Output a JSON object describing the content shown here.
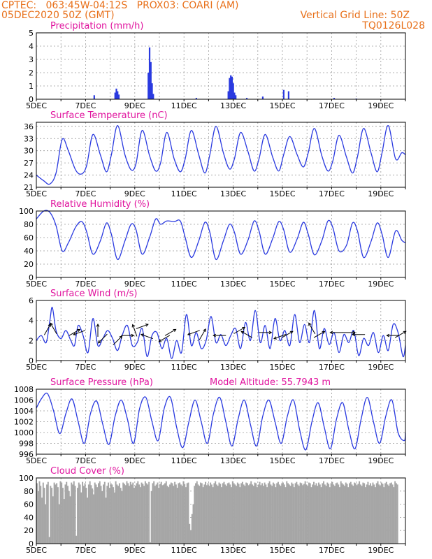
{
  "header": {
    "line1_left": "CPTEC:   063:45W-04:12S   PROX03: COARI (AM)",
    "line2_left": "05DEC2020 50Z (GMT)",
    "line2_right": "Vertical Grid Line: 50Z",
    "line3_right": "TQ0126L028"
  },
  "colors": {
    "header": "#e8701a",
    "title": "#e0149e",
    "series": "#2a3ae0",
    "cloud": "#a6a6a6"
  },
  "x_tick_labels": [
    "5DEC",
    "7DEC",
    "9DEC",
    "11DEC",
    "13DEC",
    "15DEC",
    "17DEC",
    "19DEC"
  ],
  "chart_data": [
    {
      "type": "bar",
      "title": "Precipitation  (mm/h)",
      "x_unit": "days since 5DEC 00Z",
      "ylim": [
        0,
        5
      ],
      "yticks": [
        0,
        1,
        2,
        3,
        4,
        5
      ],
      "grid": true,
      "bars": [
        {
          "x": 2.35,
          "y": 0.3
        },
        {
          "x": 3.2,
          "y": 0.5
        },
        {
          "x": 3.25,
          "y": 0.8
        },
        {
          "x": 3.3,
          "y": 0.6
        },
        {
          "x": 3.35,
          "y": 0.35
        },
        {
          "x": 4.55,
          "y": 2.0
        },
        {
          "x": 4.6,
          "y": 3.9
        },
        {
          "x": 4.65,
          "y": 2.8
        },
        {
          "x": 4.7,
          "y": 1.2
        },
        {
          "x": 4.75,
          "y": 0.4
        },
        {
          "x": 6.5,
          "y": 0.1
        },
        {
          "x": 7.8,
          "y": 0.6
        },
        {
          "x": 7.85,
          "y": 1.6
        },
        {
          "x": 7.9,
          "y": 1.8
        },
        {
          "x": 7.95,
          "y": 1.7
        },
        {
          "x": 8.0,
          "y": 1.2
        },
        {
          "x": 8.05,
          "y": 0.5
        },
        {
          "x": 8.1,
          "y": 0.3
        },
        {
          "x": 8.55,
          "y": 0.1
        },
        {
          "x": 9.2,
          "y": 0.2
        },
        {
          "x": 10.05,
          "y": 0.7
        },
        {
          "x": 10.25,
          "y": 0.6
        },
        {
          "x": 12.1,
          "y": 0.1
        },
        {
          "x": 13.0,
          "y": 0.05
        }
      ]
    },
    {
      "type": "line",
      "title": "Surface Temperature  (nC)",
      "ylim": [
        21,
        37
      ],
      "yticks": [
        21,
        24,
        27,
        30,
        33,
        36
      ],
      "grid": true,
      "x": [
        0,
        0.3,
        0.55,
        0.8,
        1.05,
        1.3,
        1.6,
        1.85,
        2.05,
        2.3,
        2.6,
        2.85,
        3.05,
        3.3,
        3.6,
        3.85,
        4.05,
        4.3,
        4.6,
        4.85,
        5.05,
        5.3,
        5.6,
        5.85,
        6.05,
        6.3,
        6.6,
        6.85,
        7.05,
        7.3,
        7.6,
        7.85,
        8.05,
        8.3,
        8.6,
        8.85,
        9.05,
        9.3,
        9.6,
        9.85,
        10.05,
        10.3,
        10.6,
        10.85,
        11.05,
        11.3,
        11.6,
        11.85,
        12.05,
        12.3,
        12.6,
        12.85,
        13.05,
        13.3,
        13.6,
        13.85,
        14.05,
        14.3,
        14.6,
        14.85,
        15.0
      ],
      "values": [
        24.0,
        22.6,
        21.8,
        24.5,
        32.8,
        30.0,
        25.2,
        24.3,
        26.5,
        34.0,
        29.0,
        24.8,
        29.0,
        36.2,
        29.0,
        25.3,
        26.8,
        35.0,
        28.8,
        25.0,
        27.0,
        34.5,
        28.0,
        24.8,
        28.0,
        35.0,
        29.0,
        24.5,
        29.0,
        36.0,
        29.5,
        25.5,
        28.0,
        34.5,
        29.8,
        25.0,
        28.0,
        34.0,
        28.5,
        25.0,
        29.0,
        33.5,
        29.0,
        26.0,
        29.5,
        35.5,
        28.8,
        25.0,
        27.5,
        33.8,
        28.5,
        24.5,
        28.5,
        35.5,
        29.5,
        24.8,
        29.5,
        36.2,
        28.0,
        29.5,
        29.0
      ]
    },
    {
      "type": "line",
      "title": "Relative Humidity  (%)",
      "ylim": [
        0,
        100
      ],
      "yticks": [
        0,
        20,
        40,
        60,
        80,
        100
      ],
      "grid": true,
      "x": [
        0,
        0.3,
        0.55,
        0.8,
        1.05,
        1.3,
        1.6,
        1.85,
        2.05,
        2.3,
        2.6,
        2.85,
        3.05,
        3.3,
        3.6,
        3.85,
        4.05,
        4.3,
        4.6,
        4.85,
        5.05,
        5.3,
        5.6,
        5.85,
        6.05,
        6.3,
        6.6,
        6.85,
        7.05,
        7.3,
        7.6,
        7.85,
        8.05,
        8.3,
        8.6,
        8.85,
        9.05,
        9.3,
        9.6,
        9.85,
        10.05,
        10.3,
        10.6,
        10.85,
        11.05,
        11.3,
        11.6,
        11.85,
        12.05,
        12.3,
        12.6,
        12.85,
        13.05,
        13.3,
        13.6,
        13.85,
        14.05,
        14.3,
        14.6,
        14.85,
        15.0
      ],
      "values": [
        88,
        100,
        98,
        78,
        40,
        52,
        76,
        84,
        68,
        35,
        55,
        82,
        65,
        27,
        55,
        80,
        72,
        35,
        60,
        88,
        80,
        85,
        84,
        85,
        60,
        30,
        55,
        83,
        68,
        27,
        55,
        80,
        68,
        35,
        56,
        85,
        70,
        35,
        58,
        84,
        72,
        38,
        58,
        83,
        65,
        34,
        55,
        85,
        75,
        40,
        48,
        82,
        70,
        30,
        54,
        82,
        65,
        30,
        70,
        56,
        52
      ]
    },
    {
      "type": "line",
      "title": "Surface Wind  (m/s)",
      "ylim": [
        0,
        6
      ],
      "yticks": [
        0,
        2,
        4,
        6
      ],
      "grid": true,
      "x": [
        0,
        0.2,
        0.4,
        0.55,
        0.65,
        0.8,
        1.0,
        1.2,
        1.4,
        1.55,
        1.7,
        1.9,
        2.1,
        2.3,
        2.5,
        2.7,
        2.9,
        3.1,
        3.3,
        3.5,
        3.7,
        3.9,
        4.1,
        4.3,
        4.5,
        4.7,
        4.9,
        5.1,
        5.3,
        5.5,
        5.7,
        5.9,
        6.1,
        6.3,
        6.5,
        6.7,
        6.9,
        7.1,
        7.3,
        7.5,
        7.7,
        7.9,
        8.1,
        8.3,
        8.5,
        8.7,
        8.9,
        9.1,
        9.3,
        9.5,
        9.7,
        9.9,
        10.1,
        10.3,
        10.5,
        10.7,
        10.9,
        11.1,
        11.3,
        11.5,
        11.7,
        11.9,
        12.1,
        12.3,
        12.5,
        12.7,
        12.9,
        13.1,
        13.3,
        13.5,
        13.7,
        13.9,
        14.1,
        14.3,
        14.5,
        14.7,
        14.9,
        15.0
      ],
      "values": [
        2.0,
        2.5,
        1.8,
        4.0,
        5.3,
        3.0,
        2.2,
        3.0,
        2.0,
        1.5,
        3.5,
        2.5,
        0.8,
        4.2,
        1.5,
        2.2,
        3.0,
        2.2,
        1.0,
        2.6,
        3.5,
        1.5,
        1.8,
        3.2,
        0.4,
        2.5,
        2.8,
        1.2,
        2.2,
        0.2,
        2.0,
        0.8,
        4.6,
        1.5,
        2.8,
        1.2,
        2.0,
        4.4,
        1.8,
        2.6,
        1.5,
        2.5,
        3.2,
        1.2,
        3.8,
        2.0,
        5.0,
        1.8,
        3.5,
        1.2,
        4.2,
        2.0,
        3.0,
        1.5,
        4.6,
        1.8,
        3.6,
        1.8,
        5.0,
        1.2,
        3.2,
        1.6,
        2.8,
        0.8,
        2.6,
        1.8,
        3.0,
        0.5,
        2.2,
        1.5,
        2.8,
        0.8,
        2.5,
        1.0,
        3.6,
        2.8,
        0.4,
        1.5
      ]
    },
    {
      "type": "line",
      "title": "Surface Pressure  (hPa)",
      "subtitle": "Model Altitude: 55.7943  m",
      "ylim": [
        996,
        1008
      ],
      "yticks": [
        996,
        998,
        1000,
        1002,
        1004,
        1006,
        1008
      ],
      "grid": true,
      "x": [
        0,
        0.2,
        0.45,
        0.7,
        0.95,
        1.2,
        1.45,
        1.7,
        1.95,
        2.2,
        2.45,
        2.7,
        2.95,
        3.2,
        3.45,
        3.7,
        3.95,
        4.2,
        4.45,
        4.7,
        4.95,
        5.2,
        5.45,
        5.7,
        5.95,
        6.2,
        6.45,
        6.7,
        6.95,
        7.2,
        7.45,
        7.7,
        7.95,
        8.2,
        8.45,
        8.7,
        8.95,
        9.2,
        9.45,
        9.7,
        9.95,
        10.2,
        10.45,
        10.7,
        10.95,
        11.2,
        11.45,
        11.7,
        11.95,
        12.2,
        12.45,
        12.7,
        12.95,
        13.2,
        13.45,
        13.7,
        13.95,
        14.2,
        14.45,
        14.7,
        14.95,
        15.0
      ],
      "values": [
        1004.5,
        1006.2,
        1007.2,
        1004.0,
        999.8,
        1003.5,
        1006.2,
        1002.0,
        998.0,
        1003.5,
        1005.8,
        1001.5,
        997.8,
        1003.0,
        1006.0,
        1002.5,
        998.0,
        1004.5,
        1006.5,
        1002.0,
        998.5,
        1004.5,
        1006.5,
        1001.0,
        997.2,
        1002.0,
        1006.0,
        1002.0,
        998.0,
        1003.5,
        1006.5,
        1002.0,
        997.5,
        1002.5,
        1006.0,
        1001.5,
        997.5,
        1003.0,
        1006.0,
        1002.0,
        998.0,
        1003.0,
        1006.0,
        1000.5,
        996.8,
        1002.0,
        1005.5,
        1001.0,
        997.0,
        1002.5,
        1005.5,
        1000.5,
        997.0,
        1002.5,
        1006.5,
        1002.0,
        998.0,
        1003.0,
        1006.0,
        1000.0,
        998.5,
        1000.0
      ]
    },
    {
      "type": "bar",
      "title": "Cloud Cover  (%)",
      "ylim": [
        0,
        100
      ],
      "yticks": [
        0,
        20,
        40,
        60,
        80,
        100
      ],
      "grid": true,
      "x_step": 0.05,
      "values": [
        92,
        80,
        95,
        88,
        70,
        93,
        85,
        60,
        90,
        94,
        10,
        88,
        85,
        72,
        93,
        90,
        92,
        86,
        60,
        95,
        93,
        85,
        68,
        90,
        94,
        88,
        80,
        72,
        93,
        90,
        95,
        88,
        12,
        85,
        93,
        90,
        78,
        94,
        88,
        92,
        85,
        70,
        90,
        95,
        89,
        84,
        75,
        93,
        90,
        86,
        92,
        95,
        88,
        80,
        90,
        94,
        70,
        88,
        93,
        85,
        92,
        90,
        86,
        78,
        95,
        90,
        88,
        92,
        85,
        80,
        93,
        91,
        89,
        95,
        92,
        88,
        94,
        90,
        93,
        85,
        88,
        92,
        95,
        90,
        86,
        93,
        91,
        88,
        95,
        92,
        90,
        94,
        2,
        80,
        92,
        95,
        88,
        90,
        93,
        85,
        91,
        94,
        89,
        90,
        92,
        95,
        88,
        86,
        90,
        93,
        92,
        88,
        94,
        90,
        85,
        92,
        93,
        90,
        88,
        95,
        91,
        86,
        92,
        93,
        30,
        20,
        45,
        60,
        88,
        92,
        95,
        90,
        88,
        93,
        92,
        86,
        90,
        94,
        89,
        92,
        88,
        93,
        90,
        86,
        92,
        95,
        90,
        88,
        93,
        91,
        86,
        92,
        94,
        90,
        88,
        92,
        93,
        90,
        86,
        95,
        92,
        90,
        88,
        93,
        91,
        86,
        92,
        94,
        90,
        88,
        93,
        92,
        89,
        91,
        95,
        90,
        88,
        93,
        92,
        86,
        90,
        94,
        89,
        92,
        88,
        93,
        90,
        86,
        92,
        95,
        90,
        88,
        93,
        91,
        86,
        92,
        94,
        90,
        88,
        92,
        93,
        90,
        86,
        95,
        92,
        90,
        88,
        93,
        91,
        86,
        92,
        94,
        90,
        88,
        93,
        92,
        89,
        91,
        95,
        90,
        88,
        93,
        92,
        86,
        90,
        94,
        89,
        92,
        88,
        93,
        90,
        86,
        92,
        95,
        90,
        88,
        93,
        91,
        86,
        92,
        94,
        90,
        88,
        92,
        93,
        90,
        86,
        95,
        92,
        90,
        88,
        93,
        91,
        86,
        92,
        94,
        90,
        88,
        93,
        92,
        89,
        91,
        95,
        90,
        88,
        93,
        92,
        86,
        90,
        94,
        89,
        92,
        88,
        93,
        90,
        86,
        92,
        95,
        90,
        88,
        93,
        91,
        86,
        92,
        94,
        90,
        88,
        92,
        93,
        90,
        86,
        95,
        92,
        90
      ]
    }
  ],
  "wind_arrows": [
    {
      "x": 0.45,
      "y": 3.1,
      "dir_deg": 60
    },
    {
      "x": 0.7,
      "y": 3.2,
      "dir_deg": 120
    },
    {
      "x": 1.55,
      "y": 2.8,
      "dir_deg": 30
    },
    {
      "x": 1.75,
      "y": 2.8,
      "dir_deg": 200
    },
    {
      "x": 2.5,
      "y": 3.0,
      "dir_deg": 90
    },
    {
      "x": 2.7,
      "y": 2.2,
      "dir_deg": 225
    },
    {
      "x": 3.3,
      "y": 2.0,
      "dir_deg": 45
    },
    {
      "x": 3.7,
      "y": 2.5,
      "dir_deg": 0
    },
    {
      "x": 4.0,
      "y": 3.0,
      "dir_deg": 110
    },
    {
      "x": 4.3,
      "y": 3.4,
      "dir_deg": 20
    },
    {
      "x": 4.5,
      "y": 2.4,
      "dir_deg": 160
    },
    {
      "x": 5.2,
      "y": 2.2,
      "dir_deg": 210
    },
    {
      "x": 5.45,
      "y": 2.8,
      "dir_deg": 30
    },
    {
      "x": 6.4,
      "y": 2.8,
      "dir_deg": 200
    },
    {
      "x": 6.75,
      "y": 2.6,
      "dir_deg": 60
    },
    {
      "x": 7.45,
      "y": 2.5,
      "dir_deg": 180
    },
    {
      "x": 8.25,
      "y": 3.0,
      "dir_deg": 30
    },
    {
      "x": 8.55,
      "y": 2.6,
      "dir_deg": 150
    },
    {
      "x": 9.3,
      "y": 2.8,
      "dir_deg": 0
    },
    {
      "x": 9.9,
      "y": 2.4,
      "dir_deg": 200
    },
    {
      "x": 10.2,
      "y": 2.6,
      "dir_deg": 30
    },
    {
      "x": 11.2,
      "y": 3.2,
      "dir_deg": 120
    },
    {
      "x": 11.5,
      "y": 2.6,
      "dir_deg": 30
    },
    {
      "x": 12.2,
      "y": 2.8,
      "dir_deg": 180
    },
    {
      "x": 12.7,
      "y": 2.8,
      "dir_deg": 0
    },
    {
      "x": 13.1,
      "y": 2.6,
      "dir_deg": 180
    },
    {
      "x": 14.5,
      "y": 2.5,
      "dir_deg": 180
    },
    {
      "x": 14.8,
      "y": 2.6,
      "dir_deg": 30
    }
  ]
}
